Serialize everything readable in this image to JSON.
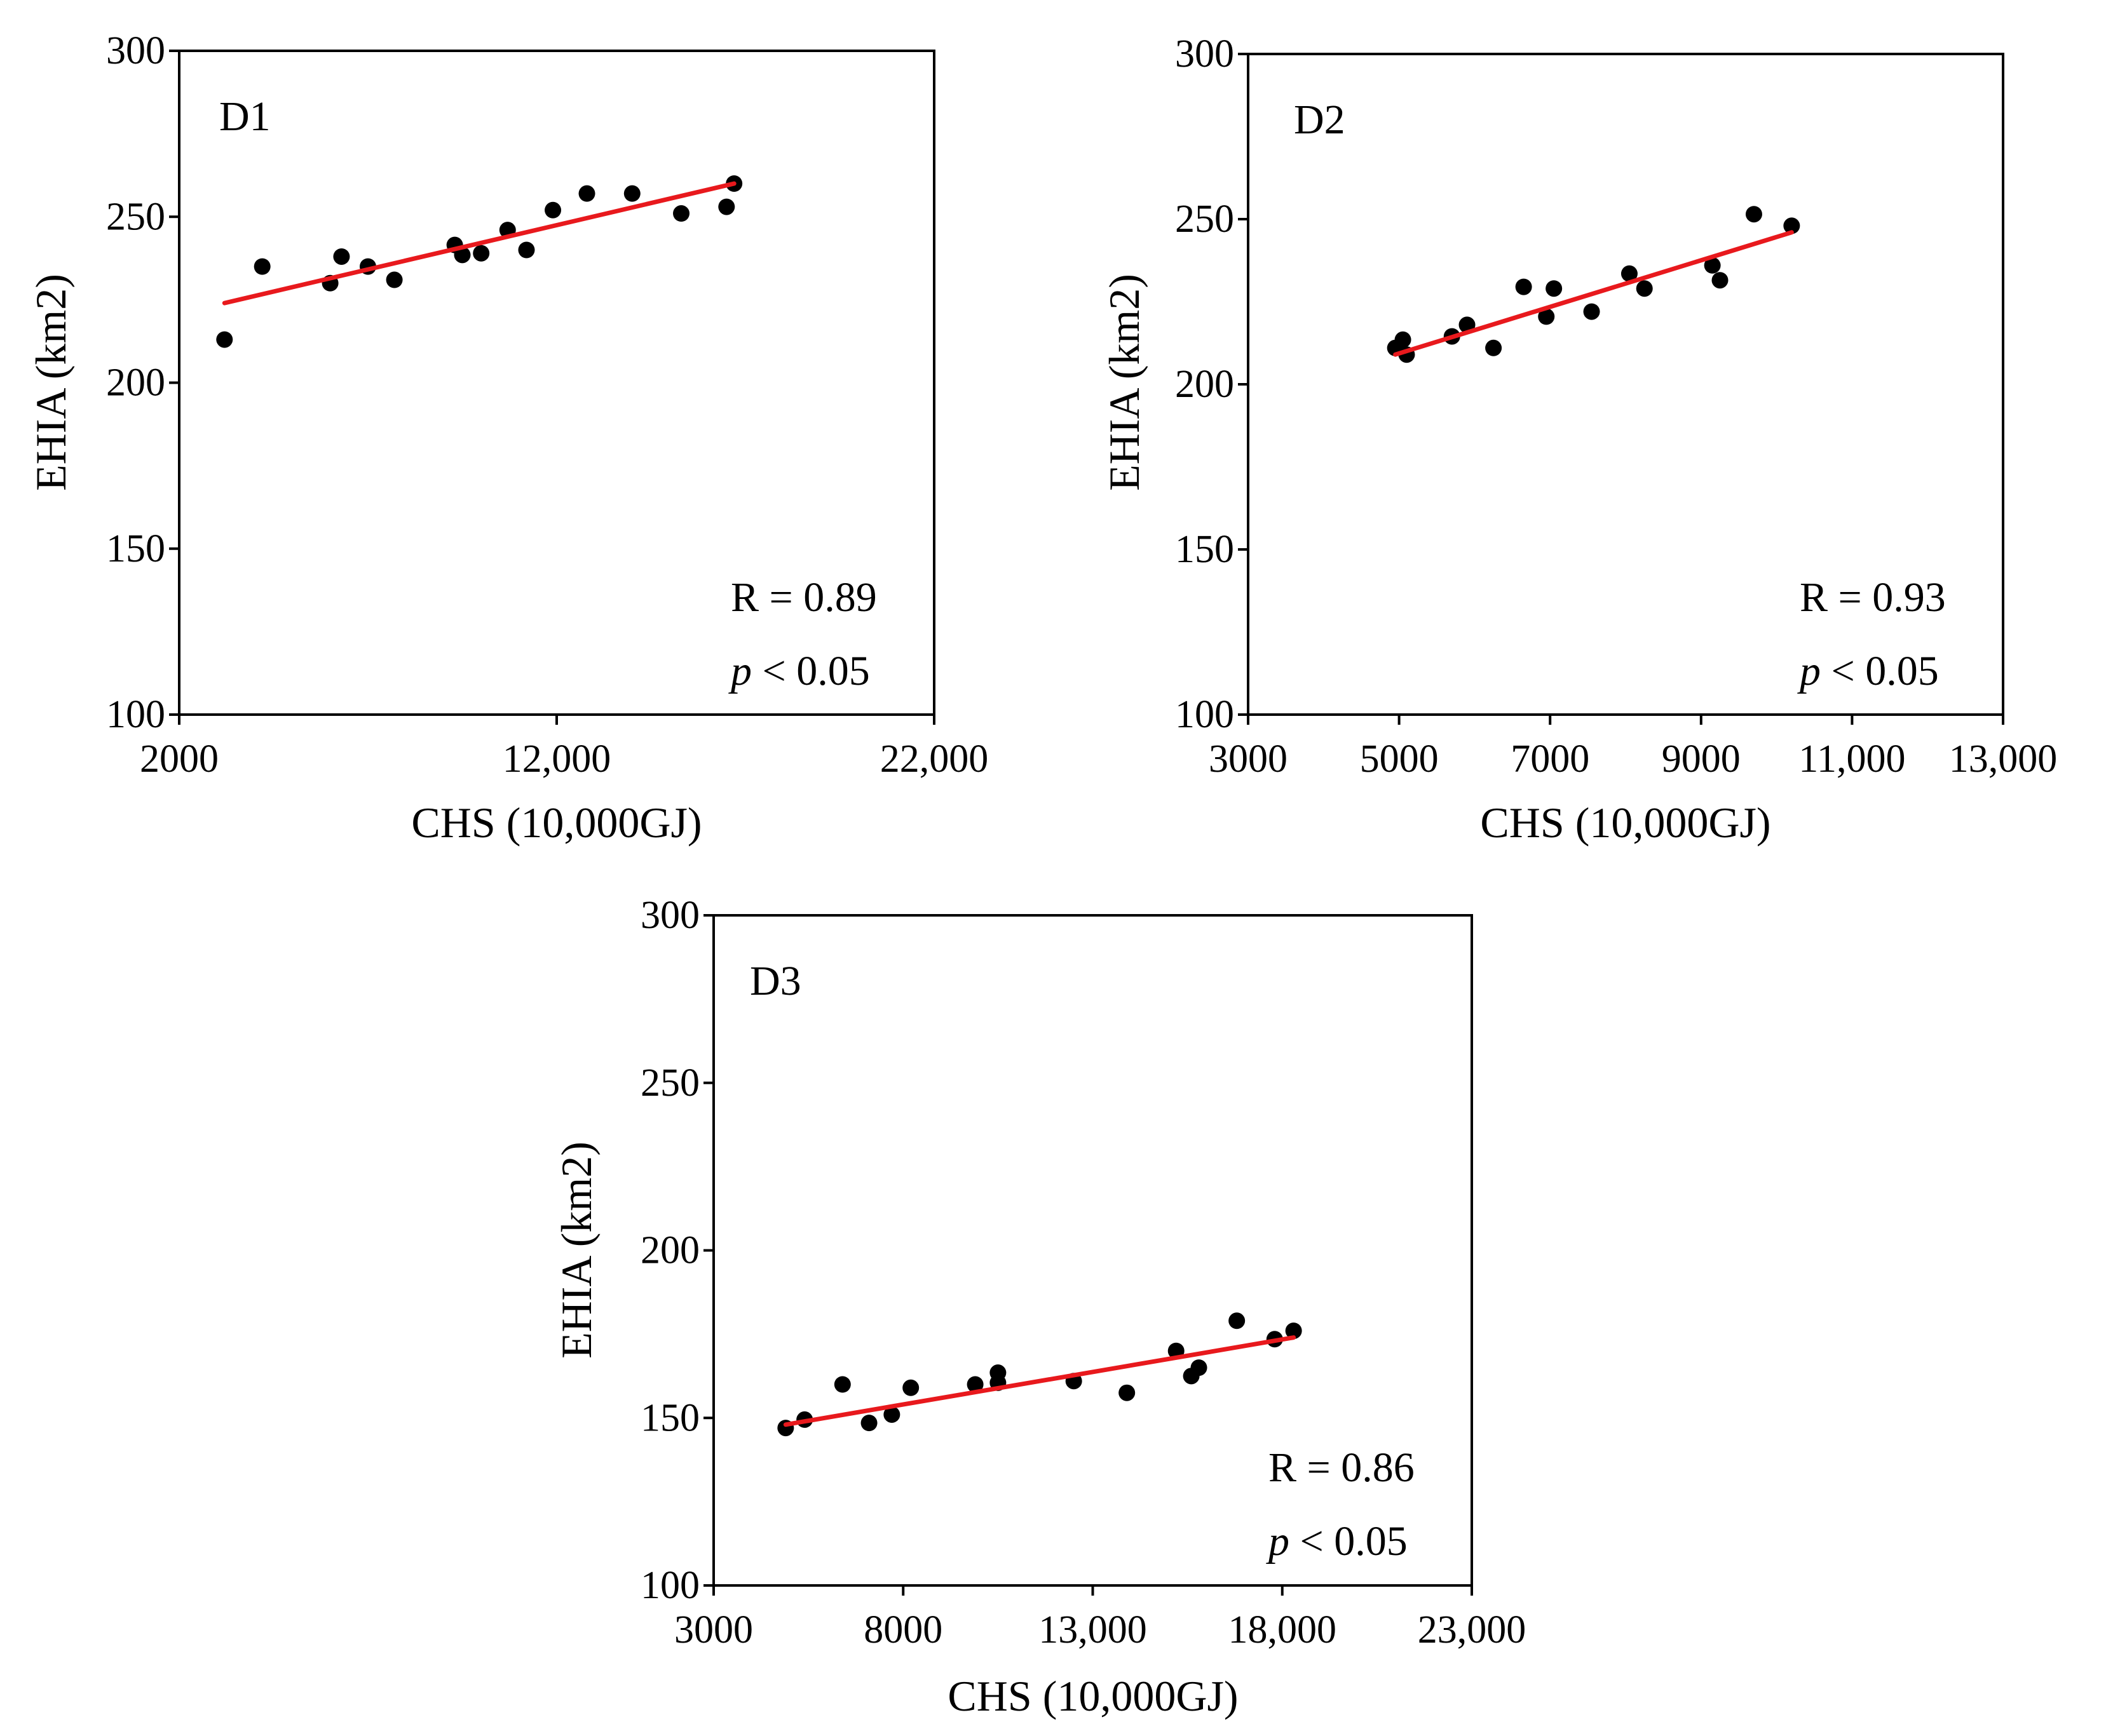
{
  "figure": {
    "colors": {
      "points": "#000000",
      "fit_line": "#e8191d",
      "axes": "#000000"
    }
  },
  "chart_data": [
    {
      "type": "scatter",
      "panel_label": "D1",
      "xlabel": "CHS (10,000GJ)",
      "ylabel": "EHIA (km2)",
      "xlim": [
        2000,
        22000
      ],
      "ylim": [
        100,
        300
      ],
      "xticks": [
        2000,
        12000,
        22000
      ],
      "xtick_labels": [
        "2000",
        "12,000",
        "22,000"
      ],
      "yticks": [
        100,
        150,
        200,
        250,
        300
      ],
      "ytick_labels": [
        "100",
        "150",
        "200",
        "250",
        "300"
      ],
      "r_text": "R = 0.89",
      "p_symbol": "p",
      "p_text": " < 0.05",
      "fit_line": [
        [
          3200,
          224
        ],
        [
          16700,
          260
        ]
      ],
      "points": [
        [
          3200,
          213
        ],
        [
          4200,
          235
        ],
        [
          6000,
          230
        ],
        [
          6300,
          238
        ],
        [
          7000,
          235
        ],
        [
          7700,
          231
        ],
        [
          9300,
          241.5
        ],
        [
          9500,
          238.5
        ],
        [
          10000,
          239
        ],
        [
          10700,
          246
        ],
        [
          11200,
          240
        ],
        [
          11900,
          252
        ],
        [
          12800,
          257
        ],
        [
          14000,
          257
        ],
        [
          15300,
          251
        ],
        [
          16500,
          253
        ],
        [
          16700,
          260
        ]
      ]
    },
    {
      "type": "scatter",
      "panel_label": "D2",
      "xlabel": "CHS (10,000GJ)",
      "ylabel": "EHIA (km2)",
      "xlim": [
        3000,
        13000
      ],
      "ylim": [
        100,
        300
      ],
      "xticks": [
        3000,
        5000,
        7000,
        9000,
        11000,
        13000
      ],
      "xtick_labels": [
        "3000",
        "5000",
        "7000",
        "9000",
        "11,000",
        "13,000"
      ],
      "yticks": [
        100,
        150,
        200,
        250,
        300
      ],
      "ytick_labels": [
        "100",
        "150",
        "200",
        "250",
        "300"
      ],
      "r_text": "R = 0.93",
      "p_symbol": "p",
      "p_text": " < 0.05",
      "fit_line": [
        [
          4950,
          209
        ],
        [
          10200,
          246
        ]
      ],
      "points": [
        [
          4950,
          211
        ],
        [
          5050,
          213.5
        ],
        [
          5100,
          209
        ],
        [
          5700,
          214.5
        ],
        [
          5900,
          218
        ],
        [
          6250,
          211
        ],
        [
          6650,
          229.5
        ],
        [
          6950,
          220.5
        ],
        [
          7050,
          229
        ],
        [
          7550,
          222
        ],
        [
          8050,
          233.5
        ],
        [
          8250,
          229
        ],
        [
          9150,
          236
        ],
        [
          9250,
          231.5
        ],
        [
          9700,
          251.5
        ],
        [
          10200,
          248
        ]
      ]
    },
    {
      "type": "scatter",
      "panel_label": "D3",
      "xlabel": "CHS (10,000GJ)",
      "ylabel": "EHIA (km2)",
      "xlim": [
        3000,
        23000
      ],
      "ylim": [
        100,
        300
      ],
      "xticks": [
        3000,
        8000,
        13000,
        18000,
        23000
      ],
      "xtick_labels": [
        "3000",
        "8000",
        "13,000",
        "18,000",
        "23,000"
      ],
      "yticks": [
        100,
        150,
        200,
        250,
        300
      ],
      "ytick_labels": [
        "100",
        "150",
        "200",
        "250",
        "300"
      ],
      "r_text": "R = 0.86",
      "p_symbol": "p",
      "p_text": " < 0.05",
      "fit_line": [
        [
          4900,
          148
        ],
        [
          18300,
          174
        ]
      ],
      "points": [
        [
          4900,
          147
        ],
        [
          5400,
          149.5
        ],
        [
          6400,
          160
        ],
        [
          7100,
          148.5
        ],
        [
          7700,
          151
        ],
        [
          8200,
          159
        ],
        [
          9900,
          160
        ],
        [
          10500,
          160.5
        ],
        [
          10500,
          163.5
        ],
        [
          12500,
          161
        ],
        [
          13900,
          157.5
        ],
        [
          15200,
          170
        ],
        [
          15600,
          162.5
        ],
        [
          15800,
          165
        ],
        [
          16800,
          179
        ],
        [
          17800,
          173.5
        ],
        [
          18300,
          176
        ]
      ]
    }
  ]
}
